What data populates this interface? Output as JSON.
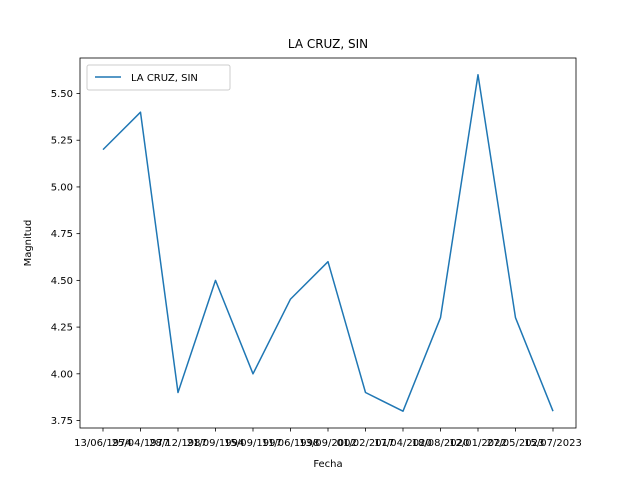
{
  "chart_data": {
    "type": "line",
    "title": "LA CRUZ, SIN",
    "xlabel": "Fecha",
    "ylabel": "Magnitud",
    "x": [
      "13/06/1974",
      "25/04/1977",
      "28/12/1987",
      "21/09/1994",
      "15/09/1997",
      "11/06/1998",
      "13/09/2002",
      "01/02/2017",
      "17/04/2020",
      "18/08/2020",
      "12/01/2022",
      "27/05/2023",
      "15/07/2023"
    ],
    "series": [
      {
        "name": "LA CRUZ, SIN",
        "color": "#1f77b4",
        "values": [
          5.2,
          5.4,
          3.9,
          4.5,
          4.0,
          4.4,
          4.6,
          3.9,
          3.8,
          4.3,
          5.6,
          4.3,
          3.8
        ]
      }
    ],
    "yticks": [
      "3.75",
      "4.00",
      "4.25",
      "4.50",
      "4.75",
      "5.00",
      "5.25",
      "5.50"
    ],
    "ylim": [
      3.71,
      5.69
    ],
    "grid": false,
    "legend": "upper-left"
  }
}
